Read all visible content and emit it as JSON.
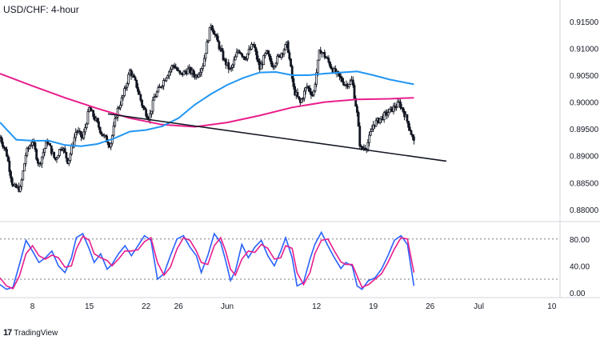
{
  "chart_data": [
    {
      "type": "candlestick",
      "title": "USD/CHF: 4-hour",
      "y_ticks": [
        "0.91500",
        "0.91000",
        "0.90500",
        "0.90000",
        "0.89500",
        "0.89000",
        "0.88500",
        "0.88000"
      ],
      "ylim": [
        0.8785,
        0.9178
      ],
      "x_ticks": [
        {
          "label": "8",
          "day": 8
        },
        {
          "label": "15",
          "day": 15
        },
        {
          "label": "22",
          "day": 22
        },
        {
          "label": "26",
          "day": 26
        },
        {
          "label": "Jun",
          "day": 32
        },
        {
          "label": "12",
          "day": 43
        },
        {
          "label": "19",
          "day": 50
        },
        {
          "label": "26",
          "day": 57
        },
        {
          "label": "Jul",
          "day": 63
        },
        {
          "label": "10",
          "day": 72
        }
      ],
      "xlim": [
        4.0,
        73.0
      ],
      "close_path": [
        [
          4.0,
          0.8935
        ],
        [
          4.8,
          0.8905
        ],
        [
          5.6,
          0.8842
        ],
        [
          6.5,
          0.8838
        ],
        [
          7.2,
          0.8905
        ],
        [
          8.0,
          0.8928
        ],
        [
          8.8,
          0.8882
        ],
        [
          9.8,
          0.8928
        ],
        [
          10.8,
          0.8892
        ],
        [
          11.6,
          0.892
        ],
        [
          12.4,
          0.8888
        ],
        [
          13.4,
          0.8948
        ],
        [
          14.2,
          0.8932
        ],
        [
          15.0,
          0.8988
        ],
        [
          15.8,
          0.8966
        ],
        [
          16.6,
          0.894
        ],
        [
          17.6,
          0.892
        ],
        [
          18.4,
          0.8982
        ],
        [
          19.2,
          0.9012
        ],
        [
          20.0,
          0.9058
        ],
        [
          20.8,
          0.9032
        ],
        [
          21.6,
          0.899
        ],
        [
          22.4,
          0.897
        ],
        [
          23.0,
          0.9008
        ],
        [
          23.8,
          0.903
        ],
        [
          24.6,
          0.9052
        ],
        [
          25.4,
          0.907
        ],
        [
          26.2,
          0.905
        ],
        [
          27.2,
          0.906
        ],
        [
          28.2,
          0.9048
        ],
        [
          29.0,
          0.907
        ],
        [
          30.0,
          0.9145
        ],
        [
          30.8,
          0.9112
        ],
        [
          31.6,
          0.9078
        ],
        [
          32.4,
          0.9058
        ],
        [
          33.4,
          0.9098
        ],
        [
          34.2,
          0.9082
        ],
        [
          35.2,
          0.9108
        ],
        [
          36.0,
          0.9062
        ],
        [
          36.8,
          0.9092
        ],
        [
          37.6,
          0.9068
        ],
        [
          38.6,
          0.909
        ],
        [
          39.4,
          0.9108
        ],
        [
          40.2,
          0.9022
        ],
        [
          41.0,
          0.8998
        ],
        [
          41.8,
          0.903
        ],
        [
          42.6,
          0.9012
        ],
        [
          43.4,
          0.9098
        ],
        [
          44.2,
          0.9082
        ],
        [
          45.0,
          0.906
        ],
        [
          45.8,
          0.9046
        ],
        [
          46.6,
          0.9032
        ],
        [
          47.4,
          0.904
        ],
        [
          48.0,
          0.8978
        ],
        [
          48.4,
          0.8912
        ],
        [
          49.2,
          0.8918
        ],
        [
          50.0,
          0.8958
        ],
        [
          50.8,
          0.8968
        ],
        [
          51.6,
          0.8978
        ],
        [
          52.4,
          0.8988
        ],
        [
          53.2,
          0.8998
        ],
        [
          53.8,
          0.898
        ],
        [
          54.4,
          0.8955
        ],
        [
          55.0,
          0.8925
        ]
      ],
      "series": [
        {
          "name": "",
          "color": "#e91e8c",
          "points": [
            [
              4.0,
              0.9053
            ],
            [
              8.0,
              0.903
            ],
            [
              12.0,
              0.9008
            ],
            [
              16.0,
              0.8988
            ],
            [
              20.0,
              0.897
            ],
            [
              24.0,
              0.8958
            ],
            [
              28.0,
              0.8954
            ],
            [
              32.0,
              0.8962
            ],
            [
              36.0,
              0.8975
            ],
            [
              40.0,
              0.899
            ],
            [
              44.0,
              0.9
            ],
            [
              48.0,
              0.9005
            ],
            [
              52.0,
              0.9006
            ],
            [
              55.0,
              0.9008
            ]
          ]
        },
        {
          "name": "",
          "color": "#2196f3",
          "points": [
            [
              4.0,
              0.8962
            ],
            [
              6.0,
              0.893
            ],
            [
              8.0,
              0.8928
            ],
            [
              10.0,
              0.8928
            ],
            [
              12.0,
              0.892
            ],
            [
              14.0,
              0.8918
            ],
            [
              16.0,
              0.8922
            ],
            [
              18.0,
              0.8932
            ],
            [
              20.0,
              0.8945
            ],
            [
              22.0,
              0.8948
            ],
            [
              24.0,
              0.8955
            ],
            [
              26.0,
              0.897
            ],
            [
              28.0,
              0.8995
            ],
            [
              30.0,
              0.9015
            ],
            [
              32.0,
              0.9032
            ],
            [
              34.0,
              0.9045
            ],
            [
              36.0,
              0.9055
            ],
            [
              38.0,
              0.9056
            ],
            [
              40.0,
              0.905
            ],
            [
              42.0,
              0.905
            ],
            [
              44.0,
              0.9053
            ],
            [
              46.0,
              0.9055
            ],
            [
              48.0,
              0.9057
            ],
            [
              50.0,
              0.905
            ],
            [
              52.0,
              0.9042
            ],
            [
              55.0,
              0.9033
            ]
          ]
        }
      ],
      "trendline": {
        "color": "#131722",
        "points": [
          [
            17.3,
            0.8978
          ],
          [
            59.0,
            0.889
          ]
        ]
      }
    },
    {
      "type": "line",
      "y_ticks": [
        "80.00",
        "40.00",
        "0.00"
      ],
      "ylim": [
        -5,
        100
      ],
      "levels": [
        80,
        20
      ],
      "series": [
        {
          "name": "",
          "color": "#2962ff",
          "points": [
            [
              4.0,
              12
            ],
            [
              4.8,
              5
            ],
            [
              5.6,
              8
            ],
            [
              6.4,
              42
            ],
            [
              7.2,
              78
            ],
            [
              8.0,
              62
            ],
            [
              8.8,
              45
            ],
            [
              9.6,
              52
            ],
            [
              10.4,
              62
            ],
            [
              11.2,
              40
            ],
            [
              12.0,
              30
            ],
            [
              12.8,
              52
            ],
            [
              13.4,
              82
            ],
            [
              14.2,
              88
            ],
            [
              15.0,
              65
            ],
            [
              15.6,
              45
            ],
            [
              16.4,
              58
            ],
            [
              17.2,
              35
            ],
            [
              17.8,
              42
            ],
            [
              18.6,
              58
            ],
            [
              19.4,
              70
            ],
            [
              20.2,
              55
            ],
            [
              21.0,
              70
            ],
            [
              21.8,
              85
            ],
            [
              22.6,
              78
            ],
            [
              23.4,
              20
            ],
            [
              24.2,
              28
            ],
            [
              25.0,
              55
            ],
            [
              25.8,
              80
            ],
            [
              26.6,
              85
            ],
            [
              27.4,
              68
            ],
            [
              28.2,
              55
            ],
            [
              28.8,
              30
            ],
            [
              29.6,
              55
            ],
            [
              30.4,
              88
            ],
            [
              31.2,
              75
            ],
            [
              31.8,
              48
            ],
            [
              32.4,
              18
            ],
            [
              33.0,
              32
            ],
            [
              33.8,
              72
            ],
            [
              34.6,
              52
            ],
            [
              35.4,
              68
            ],
            [
              36.2,
              78
            ],
            [
              37.0,
              55
            ],
            [
              37.8,
              40
            ],
            [
              38.6,
              62
            ],
            [
              39.2,
              82
            ],
            [
              40.0,
              52
            ],
            [
              40.6,
              10
            ],
            [
              41.4,
              15
            ],
            [
              42.2,
              50
            ],
            [
              42.8,
              72
            ],
            [
              43.6,
              90
            ],
            [
              44.4,
              70
            ],
            [
              45.2,
              52
            ],
            [
              46.0,
              36
            ],
            [
              46.6,
              45
            ],
            [
              47.4,
              40
            ],
            [
              48.0,
              10
            ],
            [
              48.6,
              5
            ],
            [
              49.4,
              18
            ],
            [
              50.2,
              22
            ],
            [
              51.0,
              35
            ],
            [
              51.8,
              55
            ],
            [
              52.6,
              78
            ],
            [
              53.4,
              85
            ],
            [
              54.2,
              72
            ],
            [
              55.0,
              10
            ]
          ]
        },
        {
          "name": "",
          "color": "#e91e8c",
          "points": [
            [
              4.0,
              22
            ],
            [
              4.8,
              10
            ],
            [
              5.6,
              6
            ],
            [
              6.4,
              25
            ],
            [
              7.2,
              58
            ],
            [
              8.0,
              70
            ],
            [
              8.8,
              55
            ],
            [
              9.6,
              50
            ],
            [
              10.4,
              56
            ],
            [
              11.2,
              52
            ],
            [
              12.0,
              38
            ],
            [
              12.8,
              40
            ],
            [
              13.4,
              65
            ],
            [
              14.2,
              84
            ],
            [
              15.0,
              78
            ],
            [
              15.6,
              58
            ],
            [
              16.4,
              52
            ],
            [
              17.2,
              48
            ],
            [
              17.8,
              40
            ],
            [
              18.6,
              50
            ],
            [
              19.4,
              62
            ],
            [
              20.2,
              62
            ],
            [
              21.0,
              64
            ],
            [
              21.8,
              76
            ],
            [
              22.6,
              82
            ],
            [
              23.4,
              45
            ],
            [
              24.2,
              26
            ],
            [
              25.0,
              38
            ],
            [
              25.8,
              65
            ],
            [
              26.6,
              82
            ],
            [
              27.4,
              78
            ],
            [
              28.2,
              62
            ],
            [
              28.8,
              45
            ],
            [
              29.6,
              42
            ],
            [
              30.4,
              70
            ],
            [
              31.2,
              82
            ],
            [
              31.8,
              62
            ],
            [
              32.4,
              35
            ],
            [
              33.0,
              26
            ],
            [
              33.8,
              50
            ],
            [
              34.6,
              62
            ],
            [
              35.4,
              60
            ],
            [
              36.2,
              72
            ],
            [
              37.0,
              66
            ],
            [
              37.8,
              50
            ],
            [
              38.6,
              52
            ],
            [
              39.2,
              70
            ],
            [
              40.0,
              66
            ],
            [
              40.6,
              30
            ],
            [
              41.4,
              12
            ],
            [
              42.2,
              30
            ],
            [
              42.8,
              58
            ],
            [
              43.6,
              78
            ],
            [
              44.4,
              80
            ],
            [
              45.2,
              62
            ],
            [
              46.0,
              46
            ],
            [
              46.6,
              42
            ],
            [
              47.4,
              42
            ],
            [
              48.0,
              25
            ],
            [
              48.6,
              8
            ],
            [
              49.4,
              12
            ],
            [
              50.2,
              20
            ],
            [
              51.0,
              28
            ],
            [
              51.8,
              45
            ],
            [
              52.6,
              65
            ],
            [
              53.4,
              82
            ],
            [
              54.2,
              80
            ],
            [
              55.0,
              30
            ]
          ]
        }
      ]
    }
  ],
  "footer": {
    "brand": "TradingView"
  }
}
